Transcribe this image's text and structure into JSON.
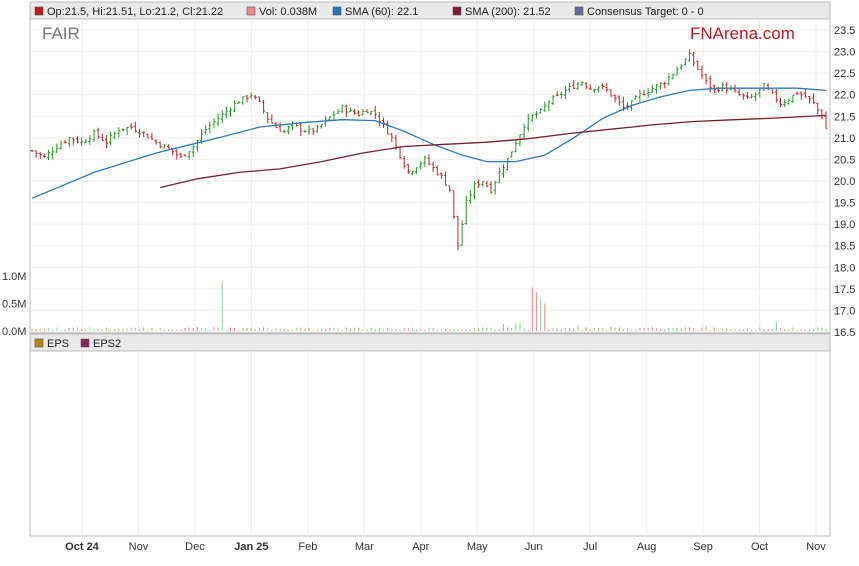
{
  "legend_top": [
    {
      "label": "Op:21.5, Hi:21.51, Lo:21.2, Cl:21.22",
      "color": "#c0191f"
    },
    {
      "label": "Vol: 0.038M",
      "color": "#f08a8a"
    },
    {
      "label": "SMA (60): 22.1",
      "color": "#2277bb"
    },
    {
      "label": "SMA (200): 21.52",
      "color": "#7a1f30"
    },
    {
      "label": "Consensus Target: 0 - 0",
      "color": "#6a6a9a"
    }
  ],
  "legend_bottom": [
    {
      "label": "EPS",
      "color": "#b8860b"
    },
    {
      "label": "EPS2",
      "color": "#8a2252"
    }
  ],
  "symbol": "FAIR",
  "brand": {
    "part1": "FN",
    "part2": "Arena.com"
  },
  "colors": {
    "up": "#229922",
    "down": "#cc2222",
    "sma60": "#2a7bbf",
    "sma200": "#7a1f30",
    "vol_up": "#99dd99",
    "vol_down": "#ee9999"
  },
  "chart_data": {
    "type": "candlestick",
    "price_axis": {
      "min": 16.5,
      "max": 23.5,
      "ticks": [
        "23.5",
        "23.0",
        "22.5",
        "22.0",
        "21.5",
        "21.0",
        "20.5",
        "20.0",
        "19.5",
        "19.0",
        "18.5",
        "18.0",
        "17.5",
        "17.0",
        "16.5"
      ]
    },
    "volume_axis": {
      "min": 0,
      "max": 1.0,
      "ticks": [
        "1.0M",
        "0.5M",
        "0.0M"
      ]
    },
    "x_labels": [
      "Oct 24",
      "Nov",
      "Dec",
      "Jan 25",
      "Feb",
      "Mar",
      "Apr",
      "May",
      "Jun",
      "Jul",
      "Aug",
      "Sep",
      "Oct",
      "Nov"
    ],
    "close_path": [
      [
        0,
        20.7
      ],
      [
        3,
        20.55
      ],
      [
        6,
        20.8
      ],
      [
        9,
        21.0
      ],
      [
        12,
        20.9
      ],
      [
        15,
        21.1
      ],
      [
        18,
        20.9
      ],
      [
        21,
        21.2
      ],
      [
        24,
        21.25
      ],
      [
        27,
        21.1
      ],
      [
        30,
        20.9
      ],
      [
        33,
        20.75
      ],
      [
        36,
        20.55
      ],
      [
        39,
        20.8
      ],
      [
        42,
        21.2
      ],
      [
        45,
        21.45
      ],
      [
        48,
        21.7
      ],
      [
        50,
        21.85
      ],
      [
        53,
        22.0
      ],
      [
        55,
        21.8
      ],
      [
        57,
        21.45
      ],
      [
        59,
        21.25
      ],
      [
        61,
        21.15
      ],
      [
        63,
        21.3
      ],
      [
        65,
        21.2
      ],
      [
        67,
        21.15
      ],
      [
        69,
        21.2
      ],
      [
        71,
        21.4
      ],
      [
        73,
        21.55
      ],
      [
        75,
        21.7
      ],
      [
        77,
        21.6
      ],
      [
        79,
        21.55
      ],
      [
        81,
        21.65
      ],
      [
        83,
        21.55
      ],
      [
        85,
        21.3
      ],
      [
        87,
        21.0
      ],
      [
        89,
        20.6
      ],
      [
        91,
        20.2
      ],
      [
        93,
        20.35
      ],
      [
        95,
        20.5
      ],
      [
        97,
        20.3
      ],
      [
        99,
        20.1
      ],
      [
        101,
        19.8
      ],
      [
        103,
        18.5
      ],
      [
        105,
        19.5
      ],
      [
        107,
        19.9
      ],
      [
        109,
        20.0
      ],
      [
        111,
        19.8
      ],
      [
        113,
        20.2
      ],
      [
        115,
        20.5
      ],
      [
        117,
        20.9
      ],
      [
        119,
        21.3
      ],
      [
        121,
        21.5
      ],
      [
        123,
        21.6
      ],
      [
        125,
        21.85
      ],
      [
        127,
        21.95
      ],
      [
        129,
        22.1
      ],
      [
        131,
        22.2
      ],
      [
        133,
        22.3
      ],
      [
        135,
        22.15
      ],
      [
        137,
        22.2
      ],
      [
        139,
        22.1
      ],
      [
        141,
        21.9
      ],
      [
        143,
        21.7
      ],
      [
        145,
        21.8
      ],
      [
        147,
        22.0
      ],
      [
        149,
        22.1
      ],
      [
        151,
        22.2
      ],
      [
        153,
        22.3
      ],
      [
        155,
        22.5
      ],
      [
        157,
        22.7
      ],
      [
        159,
        22.9
      ],
      [
        161,
        22.6
      ],
      [
        163,
        22.3
      ],
      [
        165,
        22.1
      ],
      [
        167,
        22.2
      ],
      [
        169,
        22.1
      ],
      [
        171,
        22.0
      ],
      [
        173,
        21.9
      ],
      [
        175,
        22.0
      ],
      [
        177,
        22.2
      ],
      [
        179,
        22.0
      ],
      [
        181,
        21.8
      ],
      [
        183,
        21.9
      ],
      [
        185,
        22.05
      ],
      [
        187,
        21.95
      ],
      [
        189,
        21.8
      ],
      [
        191,
        21.5
      ],
      [
        192,
        21.22
      ]
    ],
    "sma60": [
      [
        0,
        19.6
      ],
      [
        15,
        20.2
      ],
      [
        30,
        20.65
      ],
      [
        45,
        21.0
      ],
      [
        55,
        21.25
      ],
      [
        65,
        21.35
      ],
      [
        75,
        21.42
      ],
      [
        83,
        21.4
      ],
      [
        90,
        21.15
      ],
      [
        97,
        20.85
      ],
      [
        104,
        20.6
      ],
      [
        110,
        20.45
      ],
      [
        117,
        20.45
      ],
      [
        124,
        20.6
      ],
      [
        131,
        21.0
      ],
      [
        138,
        21.45
      ],
      [
        145,
        21.75
      ],
      [
        152,
        21.95
      ],
      [
        159,
        22.1
      ],
      [
        166,
        22.15
      ],
      [
        175,
        22.15
      ],
      [
        185,
        22.15
      ],
      [
        192,
        22.1
      ]
    ],
    "sma200": [
      [
        31,
        19.85
      ],
      [
        40,
        20.05
      ],
      [
        50,
        20.2
      ],
      [
        60,
        20.28
      ],
      [
        70,
        20.45
      ],
      [
        80,
        20.65
      ],
      [
        90,
        20.8
      ],
      [
        100,
        20.85
      ],
      [
        110,
        20.9
      ],
      [
        120,
        20.98
      ],
      [
        130,
        21.1
      ],
      [
        140,
        21.2
      ],
      [
        150,
        21.3
      ],
      [
        160,
        21.38
      ],
      [
        170,
        21.42
      ],
      [
        180,
        21.46
      ],
      [
        192,
        21.52
      ]
    ],
    "volume_spikes": [
      [
        46,
        0.9
      ],
      [
        114,
        0.13
      ],
      [
        117,
        0.14
      ],
      [
        118,
        0.15
      ],
      [
        121,
        0.8
      ],
      [
        122,
        0.7
      ],
      [
        123,
        0.6
      ],
      [
        124,
        0.5
      ],
      [
        132,
        0.1
      ],
      [
        140,
        0.08
      ],
      [
        150,
        0.07
      ],
      [
        163,
        0.08
      ],
      [
        180,
        0.18
      ],
      [
        192,
        0.038
      ]
    ]
  }
}
